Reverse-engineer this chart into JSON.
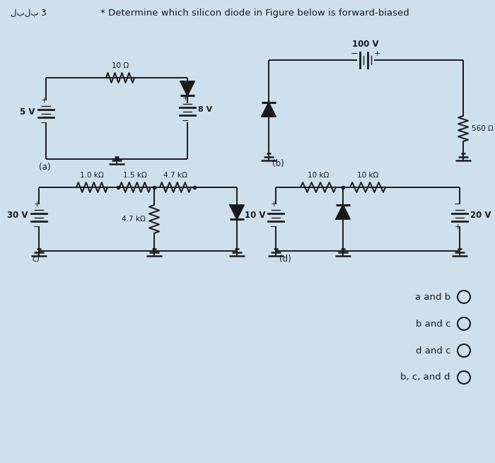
{
  "title": "* Determine which silicon diode in Figure below is forward-biased",
  "question_label": "لبلب 3",
  "bg_color": "#cde0ec",
  "text_color": "#1a1a1a",
  "options": [
    "a and b",
    "b and c",
    "d and c",
    "b, c, and d"
  ],
  "circuit_a_label": "(a)",
  "circuit_a_vs": "5 V",
  "circuit_a_r": "10 Ω",
  "circuit_a_vb": "8 V",
  "circuit_b_label": "(b)",
  "circuit_b_vs": "100 V",
  "circuit_b_r": "560 Ω",
  "circuit_c_label": "c)",
  "circuit_c_vs": "30 V",
  "circuit_c_r1": "1.0 kΩ",
  "circuit_c_r2": "1.5 kΩ",
  "circuit_c_r3": "4.7 kΩ",
  "circuit_c_r4": "4.7 kΩ",
  "circuit_d_label": "(d)",
  "circuit_d_vs1": "10 V",
  "circuit_d_vs2": "20 V",
  "circuit_d_r1": "10 kΩ",
  "circuit_d_r2": "10 kΩ"
}
